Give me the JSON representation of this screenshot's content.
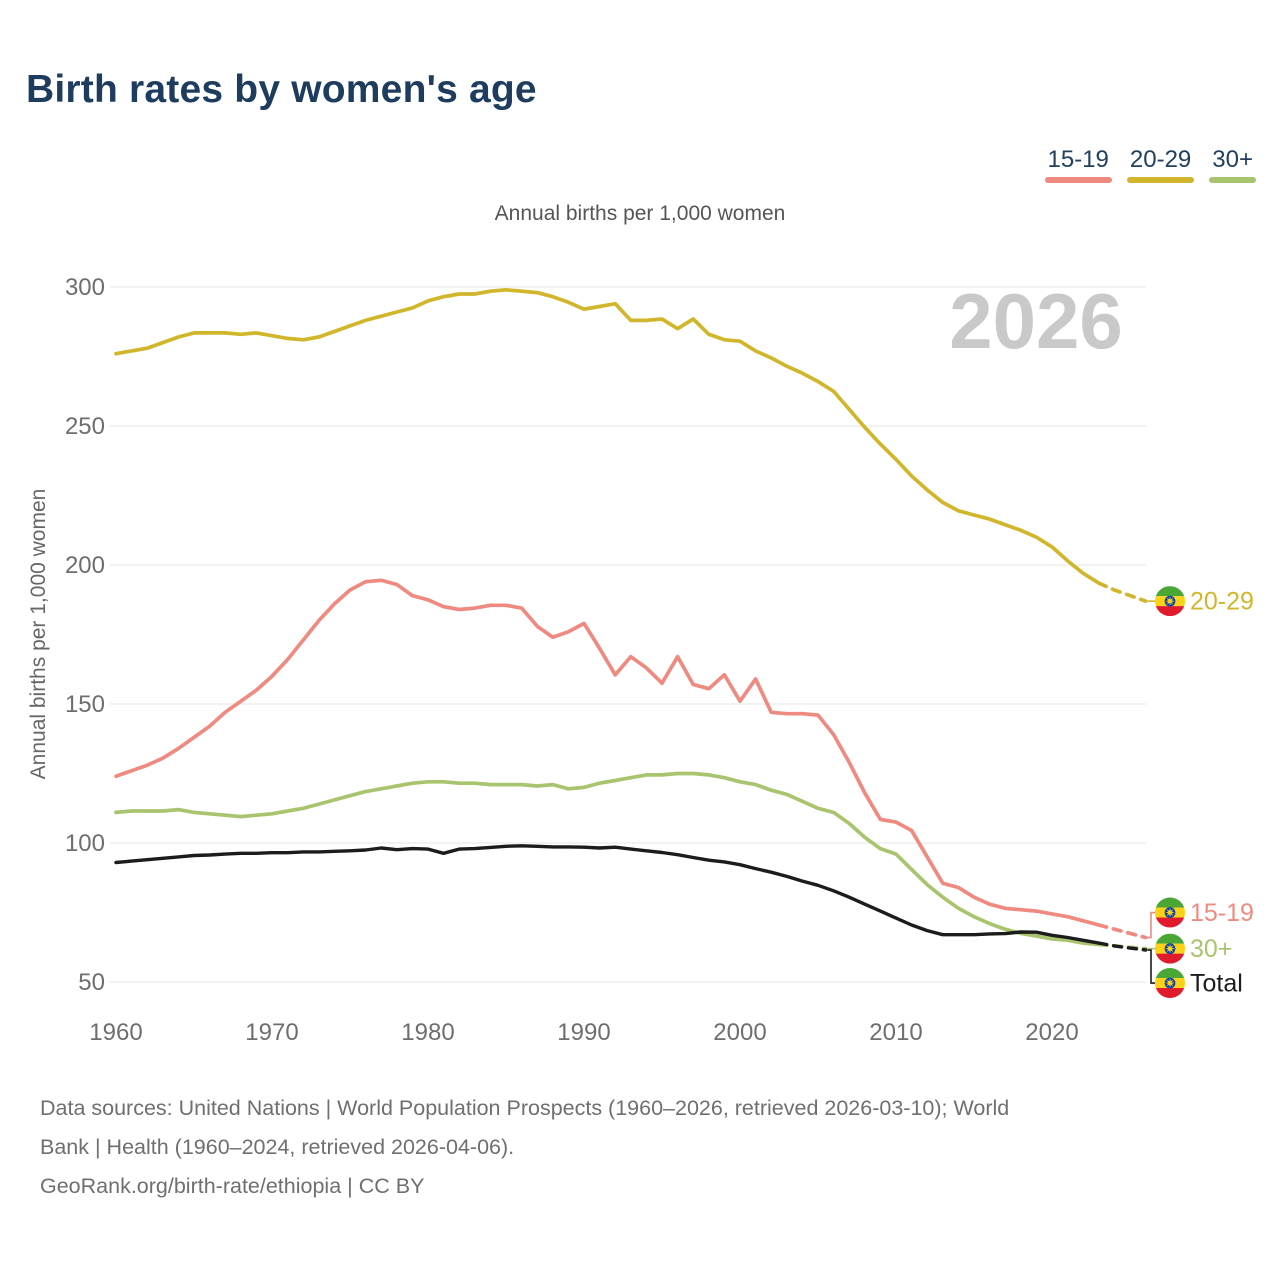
{
  "title": "Birth rates by women's age",
  "watermark_year": "2026",
  "legend": {
    "items": [
      {
        "label": "15-19",
        "color": "#ef8a80"
      },
      {
        "label": "20-29",
        "color": "#d1b62c"
      },
      {
        "label": "30+",
        "color": "#a9c46e"
      }
    ]
  },
  "chart_data": {
    "type": "line",
    "title": "Annual births per 1,000 women",
    "ylabel": "Annual births per 1,000 women",
    "xlabel": "",
    "ylim": [
      50,
      300
    ],
    "yticks": [
      300,
      250,
      200,
      150,
      100,
      50
    ],
    "xticks": [
      1960,
      1970,
      1980,
      1990,
      2000,
      2010,
      2020
    ],
    "grid": "horizontal",
    "legend_position": "top-right",
    "dashed_from_year": 2023,
    "x": [
      1960,
      1961,
      1962,
      1963,
      1964,
      1965,
      1966,
      1967,
      1968,
      1969,
      1970,
      1971,
      1972,
      1973,
      1974,
      1975,
      1976,
      1977,
      1978,
      1979,
      1980,
      1981,
      1982,
      1983,
      1984,
      1985,
      1986,
      1987,
      1988,
      1989,
      1990,
      1991,
      1992,
      1993,
      1994,
      1995,
      1996,
      1997,
      1998,
      1999,
      2000,
      2001,
      2002,
      2003,
      2004,
      2005,
      2006,
      2007,
      2008,
      2009,
      2010,
      2011,
      2012,
      2013,
      2014,
      2015,
      2016,
      2017,
      2018,
      2019,
      2020,
      2021,
      2022,
      2023,
      2024,
      2025,
      2026
    ],
    "series": [
      {
        "name": "15-19",
        "color": "#ef8a80",
        "end_label": "15-19",
        "values": [
          124,
          126,
          128,
          130.5,
          134,
          138,
          142,
          147,
          151,
          155,
          160,
          166,
          173,
          180,
          186,
          191,
          194,
          194.5,
          193,
          189,
          187.5,
          185,
          184,
          184.5,
          185.5,
          185.5,
          184.5,
          178,
          174,
          176,
          179,
          170,
          160.5,
          167,
          163,
          157.5,
          167,
          157,
          155.5,
          160.5,
          151,
          159,
          147,
          146.5,
          146.5,
          146,
          139,
          129,
          118,
          108.5,
          107.5,
          104.5,
          95,
          85.5,
          84,
          80.5,
          78,
          76.5,
          76,
          75.5,
          74.5,
          73.5,
          72,
          70.5,
          69,
          67.5,
          66
        ]
      },
      {
        "name": "20-29",
        "color": "#d1b62c",
        "end_label": "20-29",
        "values": [
          276,
          277,
          278,
          280,
          282,
          283.5,
          283.5,
          283.5,
          283,
          283.5,
          282.5,
          281.5,
          281,
          282,
          284,
          286,
          288,
          289.5,
          291,
          292.5,
          295,
          296.5,
          297.5,
          297.5,
          298.5,
          299,
          298.5,
          298,
          296.5,
          294.5,
          292,
          293,
          294,
          288,
          288,
          288.5,
          285,
          288.5,
          283,
          281,
          280.5,
          277,
          274.5,
          271.5,
          269,
          266,
          262.5,
          256,
          249.5,
          243.5,
          238,
          232,
          227,
          222.5,
          219.5,
          218,
          216.5,
          214.5,
          212.5,
          210,
          206.5,
          201.5,
          197,
          193.5,
          191,
          189,
          187
        ]
      },
      {
        "name": "30+",
        "color": "#a9c46e",
        "end_label": "30+",
        "values": [
          111,
          111.5,
          111.5,
          111.5,
          112,
          111,
          110.5,
          110,
          109.5,
          110,
          110.5,
          111.5,
          112.5,
          114,
          115.5,
          117,
          118.5,
          119.5,
          120.5,
          121.5,
          122,
          122,
          121.5,
          121.5,
          121,
          121,
          121,
          120.5,
          121,
          119.5,
          120,
          121.5,
          122.5,
          123.5,
          124.5,
          124.5,
          125,
          125,
          124.5,
          123.5,
          122,
          121,
          119,
          117.5,
          115,
          112.5,
          111,
          107,
          102,
          98,
          96,
          90.5,
          85,
          80.5,
          76.5,
          73.5,
          71,
          69,
          67.5,
          66.5,
          65.5,
          65,
          64,
          63.5,
          63,
          62.5,
          62
        ]
      },
      {
        "name": "Total",
        "color": "#1c1c1c",
        "end_label": "Total",
        "values": [
          93,
          93.5,
          94,
          94.5,
          95,
          95.5,
          95.7,
          96,
          96.3,
          96.3,
          96.5,
          96.5,
          96.8,
          96.8,
          97,
          97.2,
          97.5,
          98.2,
          97.6,
          98,
          97.8,
          96.3,
          97.8,
          98,
          98.4,
          98.8,
          99,
          98.8,
          98.6,
          98.6,
          98.5,
          98.2,
          98.5,
          97.8,
          97.2,
          96.6,
          95.8,
          94.8,
          93.8,
          93.2,
          92.2,
          90.8,
          89.5,
          88,
          86.3,
          84.8,
          82.8,
          80.5,
          78,
          75.5,
          73,
          70.5,
          68.5,
          67,
          67,
          67,
          67.3,
          67.4,
          68,
          67.9,
          66.8,
          66,
          65,
          64,
          63,
          62.2,
          61.5
        ]
      }
    ]
  },
  "flag": {
    "name": "ethiopia-flag-icon",
    "green": "#4aa635",
    "yellow": "#fcd116",
    "red": "#e01b2c",
    "blue": "#0f47af"
  },
  "footer": {
    "lines": [
      "Data sources: United Nations | World Population Prospects (1960–2026, retrieved 2026-03-10); World",
      "Bank | Health (1960–2024, retrieved 2026-04-06).",
      "GeoRank.org/birth-rate/ethiopia | CC BY"
    ]
  }
}
